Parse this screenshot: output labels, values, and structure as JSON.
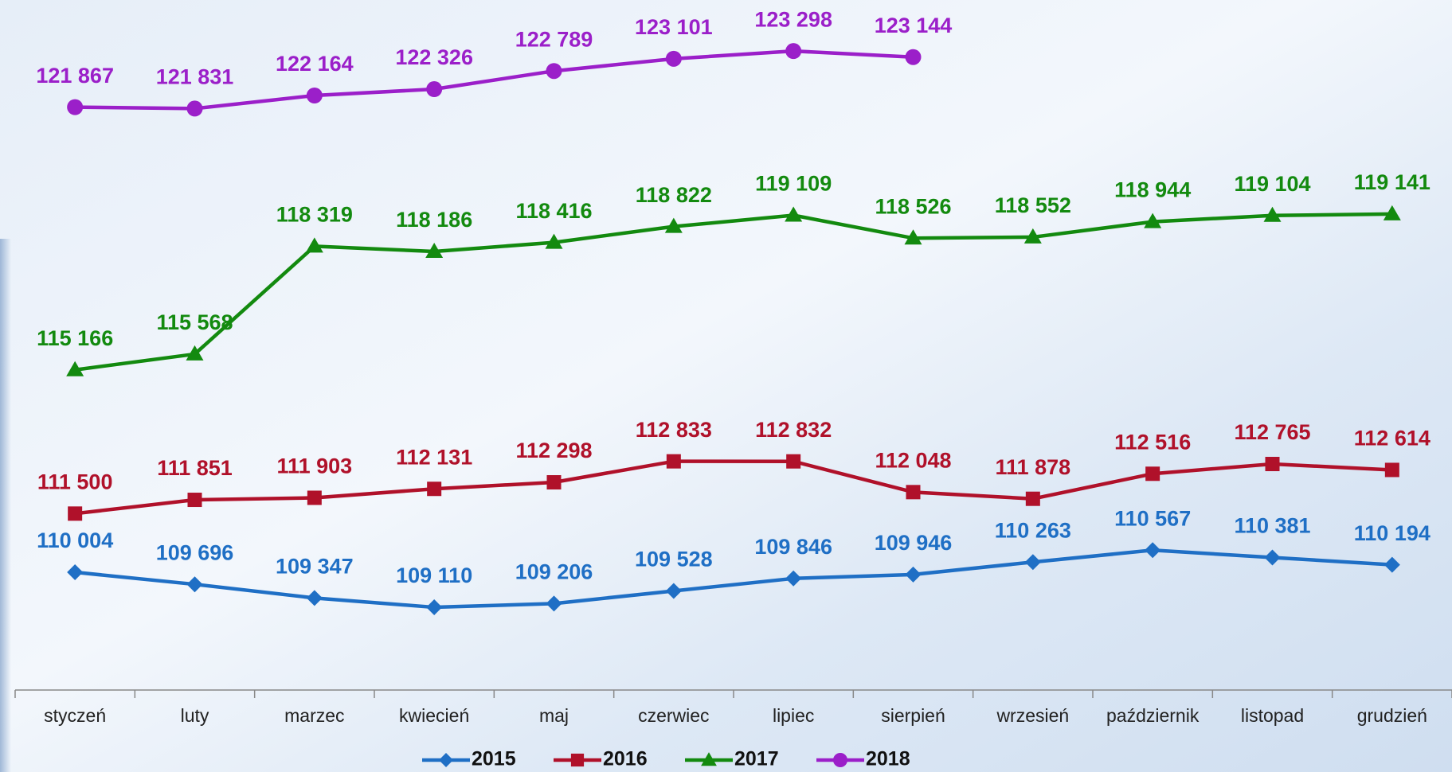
{
  "chart_data": {
    "type": "line",
    "categories": [
      "styczeń",
      "luty",
      "marzec",
      "kwiecień",
      "maj",
      "czerwiec",
      "lipiec",
      "sierpień",
      "wrzesień",
      "październik",
      "listopad",
      "grudzień"
    ],
    "ylim": [
      107000,
      124600
    ],
    "legend": "bottom",
    "series": [
      {
        "name": "2015",
        "color": "#1f6fc5",
        "marker": "diamond",
        "values": [
          110004,
          109696,
          109347,
          109110,
          109206,
          109528,
          109846,
          109946,
          110263,
          110567,
          110381,
          110194
        ],
        "value_labels": [
          "110 004",
          "109 696",
          "109 347",
          "109 110",
          "109 206",
          "109 528",
          "109 846",
          "109 946",
          "110 263",
          "110 567",
          "110 381",
          "110 194"
        ]
      },
      {
        "name": "2016",
        "color": "#b0112a",
        "marker": "square",
        "values": [
          111500,
          111851,
          111903,
          112131,
          112298,
          112833,
          112832,
          112048,
          111878,
          112516,
          112765,
          112614
        ],
        "value_labels": [
          "111 500",
          "111 851",
          "111 903",
          "112 131",
          "112 298",
          "112 833",
          "112 832",
          "112 048",
          "111 878",
          "112 516",
          "112 765",
          "112 614"
        ]
      },
      {
        "name": "2017",
        "color": "#138a0f",
        "marker": "triangle",
        "values": [
          115166,
          115568,
          118319,
          118186,
          118416,
          118822,
          119109,
          118526,
          118552,
          118944,
          119104,
          119141
        ],
        "value_labels": [
          "115 166",
          "115 568",
          "118 319",
          "118 186",
          "118 416",
          "118 822",
          "119 109",
          "118 526",
          "118 552",
          "118 944",
          "119 104",
          "119 141"
        ]
      },
      {
        "name": "2018",
        "color": "#9b1fc9",
        "marker": "circle",
        "values": [
          121867,
          121831,
          122164,
          122326,
          122789,
          123101,
          123298,
          123144,
          null,
          null,
          null,
          null
        ],
        "value_labels": [
          "121 867",
          "121 831",
          "122 164",
          "122 326",
          "122 789",
          "123 101",
          "123 298",
          "123 144",
          null,
          null,
          null,
          null
        ]
      }
    ]
  }
}
